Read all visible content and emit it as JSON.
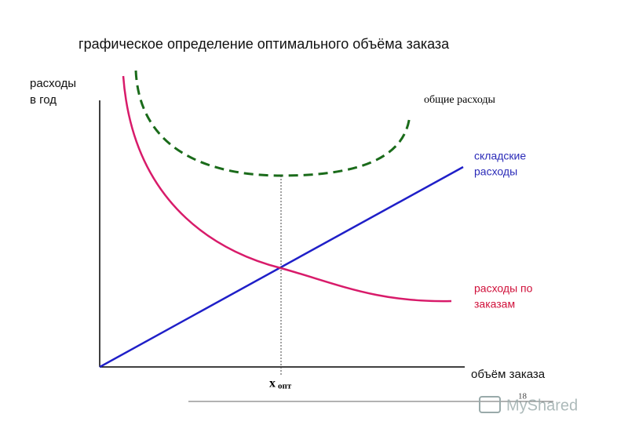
{
  "title": "графическое определение оптимального объёма заказа",
  "y_axis_label": [
    "расходы",
    "в год"
  ],
  "x_axis_label": "объём заказа",
  "curves": [
    {
      "label": [
        "общие расходы"
      ]
    },
    {
      "label": [
        "складские",
        "расходы"
      ]
    },
    {
      "label": [
        "расходы по",
        "заказам"
      ]
    }
  ],
  "optimum": {
    "symbol": "x",
    "subscript": "опт"
  },
  "page_number": "18",
  "watermark": "MyShared"
}
